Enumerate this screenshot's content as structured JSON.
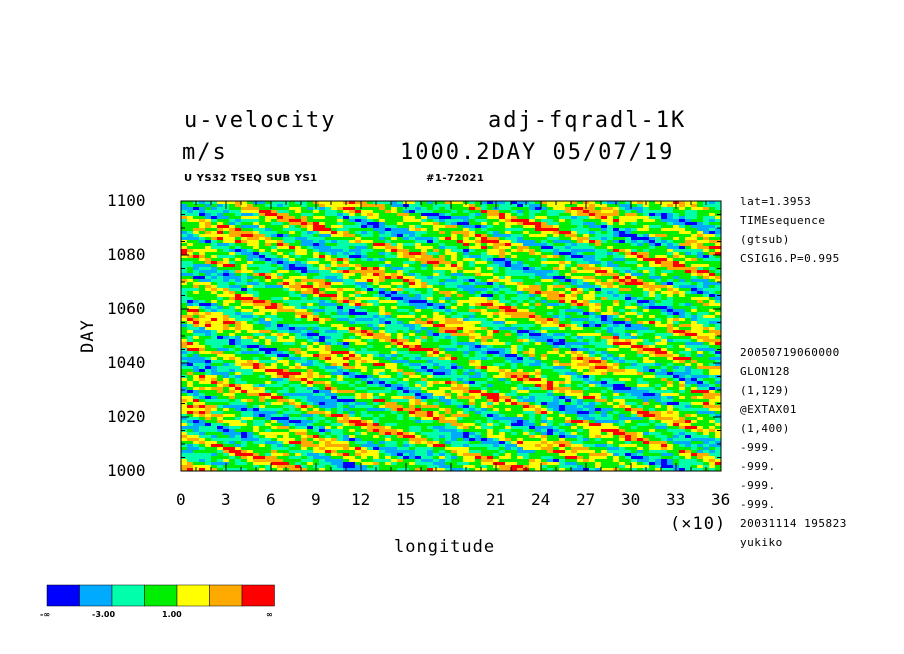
{
  "header": {
    "title_left": "u-velocity",
    "title_right": "adj-fqradl-1K",
    "units": "m/s",
    "time_label": "1000.2DAY 05/07/19",
    "sub_left": "U YS32 TSEQ SUB YS1",
    "sub_right": "#1-72021"
  },
  "info_lines": [
    "lat=1.3953",
    "TIMEsequence",
    "(gtsub)",
    "CSIG16.P=0.995",
    "20050719060000",
    "GLON128",
    "(1,129)",
    "@EXTAX01",
    "(1,400)",
    "-999.",
    "-999.",
    "-999.",
    "-999.",
    "20031114 195823",
    "yukiko"
  ],
  "chart_data": {
    "type": "heatmap",
    "xlabel": "longitude",
    "ylabel": "DAY",
    "x_multiplier": "(×10)",
    "xlim": [
      0,
      36
    ],
    "ylim": [
      1000,
      1100
    ],
    "x_ticks": [
      "0",
      "3",
      "6",
      "9",
      "12",
      "15",
      "18",
      "21",
      "24",
      "27",
      "30",
      "33",
      "36"
    ],
    "y_ticks": [
      "1000",
      "1020",
      "1040",
      "1060",
      "1080",
      "1100"
    ],
    "colorbar": {
      "colors": [
        "#0000ff",
        "#00aaff",
        "#00ffaa",
        "#00ee00",
        "#ffff00",
        "#ffaa00",
        "#ff0000"
      ],
      "labels": [
        "-∞",
        "-3.00",
        "1.00",
        "∞"
      ]
    },
    "pattern": "eastward-propagating bands (day increases with longitude), dominated by green/cyan with scattered red and blue streaks"
  }
}
